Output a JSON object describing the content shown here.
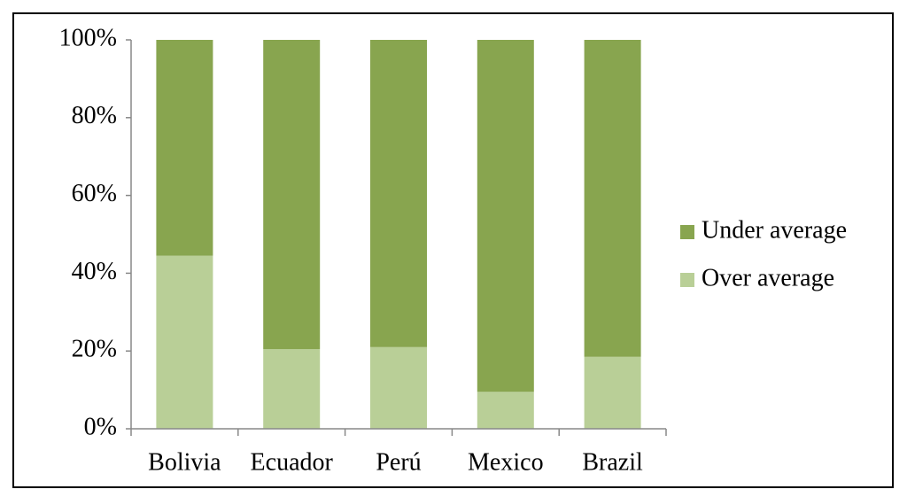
{
  "chart_data": {
    "type": "stacked_bar",
    "categories": [
      "Bolivia",
      "Ecuador",
      "Perú",
      "Mexico",
      "Brazil"
    ],
    "series": [
      {
        "name": "Over average",
        "color": "#b9cf97",
        "values": [
          44.5,
          20.5,
          21,
          9.5,
          18.5
        ]
      },
      {
        "name": "Under average",
        "color": "#88a54f",
        "values": [
          55.5,
          79.5,
          79,
          90.5,
          81.5
        ]
      }
    ],
    "ylim": [
      0,
      100
    ],
    "yticks": [
      {
        "value": 0,
        "label": "0%"
      },
      {
        "value": 20,
        "label": "20%"
      },
      {
        "value": 40,
        "label": "40%"
      },
      {
        "value": 60,
        "label": "60%"
      },
      {
        "value": 80,
        "label": "80%"
      },
      {
        "value": 100,
        "label": "100%"
      }
    ],
    "legend": "right"
  }
}
